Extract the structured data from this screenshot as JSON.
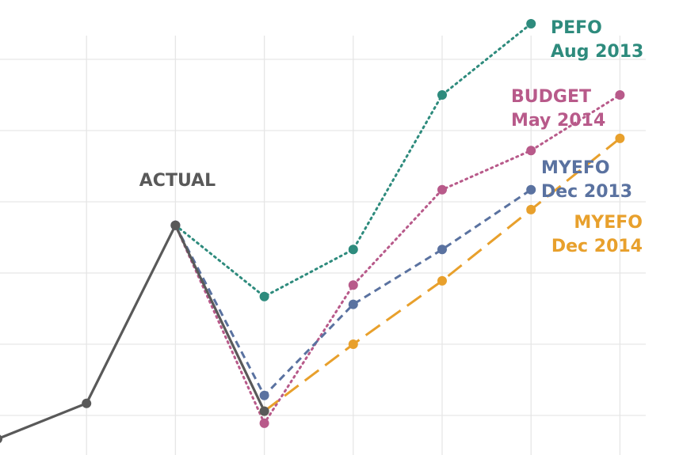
{
  "chart_data": {
    "type": "line",
    "x": [
      0,
      1,
      2,
      3,
      4,
      5,
      6,
      7
    ],
    "grid": true,
    "series": [
      {
        "name": "ACTUAL",
        "color": "#595959",
        "style": "solid",
        "label_lines": [
          "ACTUAL"
        ],
        "points": [
          [
            0,
            -0.33
          ],
          [
            1,
            0.17
          ],
          [
            2,
            2.67
          ],
          [
            3,
            0.06
          ]
        ]
      },
      {
        "name": "PEFO Aug 2013",
        "color": "#2e8b7d",
        "style": "dotted",
        "label_lines": [
          "PEFO",
          "Aug 2013"
        ],
        "points": [
          [
            2,
            2.67
          ],
          [
            3,
            1.67
          ],
          [
            4,
            2.33
          ],
          [
            5,
            4.5
          ],
          [
            6,
            5.5
          ]
        ]
      },
      {
        "name": "BUDGET May 2014",
        "color": "#b85a8a",
        "style": "dotted",
        "label_lines": [
          "BUDGET",
          "May 2014"
        ],
        "points": [
          [
            2,
            2.67
          ],
          [
            3,
            -0.11
          ],
          [
            4,
            1.83
          ],
          [
            5,
            3.17
          ],
          [
            6,
            3.72
          ],
          [
            7,
            4.5
          ]
        ]
      },
      {
        "name": "MYEFO Dec 2013",
        "color": "#5a72a0",
        "style": "dashed",
        "label_lines": [
          "MYEFO",
          "Dec 2013"
        ],
        "points": [
          [
            2,
            2.67
          ],
          [
            3,
            0.28
          ],
          [
            4,
            1.56
          ],
          [
            5,
            2.33
          ],
          [
            6,
            3.17
          ]
        ]
      },
      {
        "name": "MYEFO Dec 2014",
        "color": "#e8a02c",
        "style": "longdash",
        "label_lines": [
          "MYEFO",
          "Dec 2014"
        ],
        "points": [
          [
            3,
            0.06
          ],
          [
            4,
            1.0
          ],
          [
            5,
            1.89
          ],
          [
            6,
            2.89
          ],
          [
            7,
            3.89
          ]
        ]
      }
    ]
  }
}
